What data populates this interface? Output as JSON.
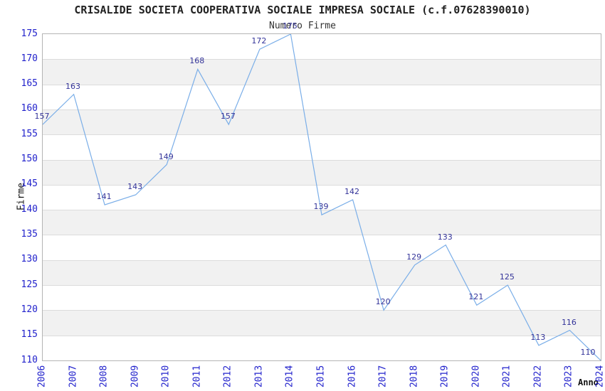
{
  "header": {
    "title": "CRISALIDE SOCIETA COOPERATIVA SOCIALE IMPRESA SOCIALE (c.f.07628390010)",
    "subtitle": "Numero Firme"
  },
  "axes": {
    "y_label": "Firme",
    "x_label": "Anno"
  },
  "chart_data": {
    "type": "line",
    "title": "CRISALIDE SOCIETA COOPERATIVA SOCIALE IMPRESA SOCIALE (c.f.07628390010)",
    "subtitle": "Numero Firme",
    "xlabel": "Anno",
    "ylabel": "Firme",
    "categories": [
      "2006",
      "2007",
      "2008",
      "2009",
      "2010",
      "2011",
      "2012",
      "2013",
      "2014",
      "2015",
      "2016",
      "2017",
      "2018",
      "2019",
      "2020",
      "2021",
      "2022",
      "2023",
      "2024"
    ],
    "values": [
      157,
      163,
      141,
      143,
      149,
      168,
      157,
      172,
      175,
      139,
      142,
      120,
      129,
      133,
      121,
      125,
      113,
      116,
      110
    ],
    "ylim": [
      110,
      175
    ],
    "ytick_step": 5,
    "grid": true,
    "alternating_bands": true,
    "point_labels_shown": true,
    "legend_position": "none",
    "colors": {
      "line": "#7aaee8",
      "tick_label": "#2222cc",
      "point_label": "#333399",
      "band": "#f1f1f1",
      "grid_line": "#dcdcdc",
      "frame": "#b4b4b4",
      "title_text": "#222222"
    }
  }
}
